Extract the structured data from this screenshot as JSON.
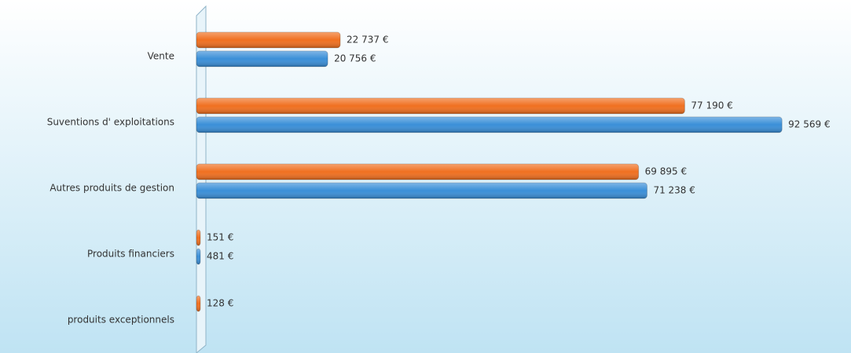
{
  "chart_data": {
    "type": "hbar",
    "categories": [
      "Vente",
      "Suventions d' exploitations",
      "Autres produits de gestion",
      "Produits financiers",
      "produits exceptionnels"
    ],
    "series": [
      {
        "color": "#f07020",
        "values": [
          22737,
          77190,
          69895,
          151,
          128
        ],
        "value_labels": [
          "22 737 €",
          "77 190 €",
          "69 895 €",
          "151 €",
          "128 €"
        ]
      },
      {
        "color": "#3a8fd8",
        "values": [
          20756,
          92569,
          71238,
          481,
          null
        ],
        "value_labels": [
          "20 756 €",
          "92 569 €",
          "71 238 €",
          "481 €",
          null
        ]
      }
    ],
    "xlim": [
      0,
      100000
    ]
  }
}
